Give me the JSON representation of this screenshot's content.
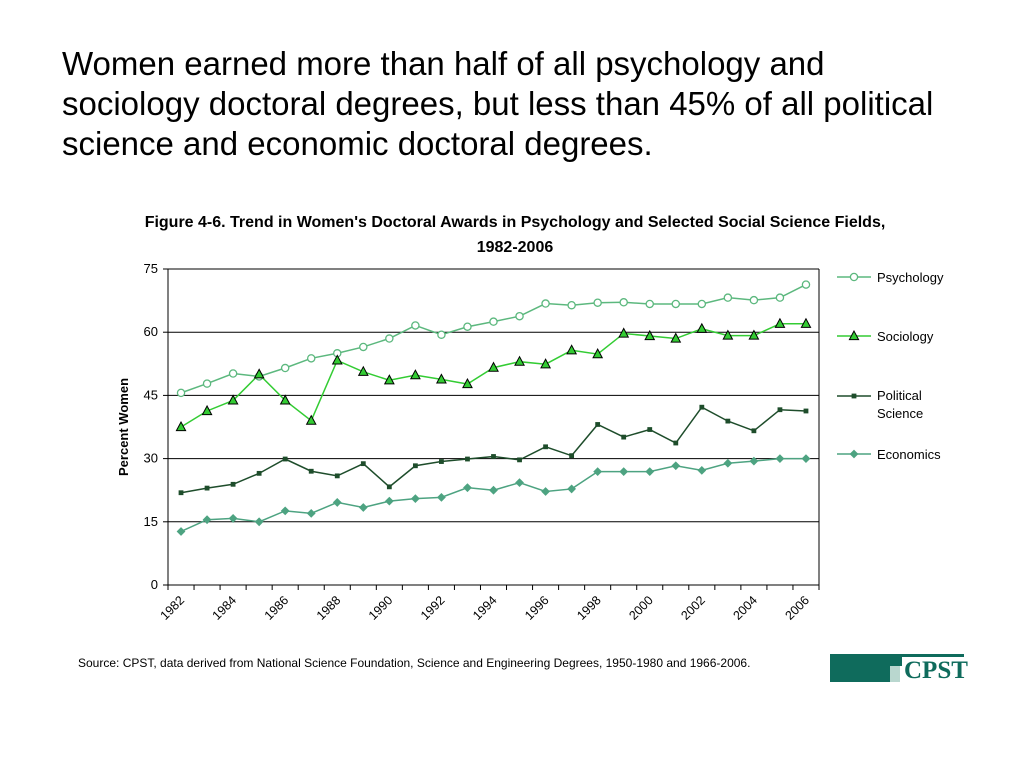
{
  "slide": {
    "headline": "Women earned more than half of all psychology and sociology doctoral degrees, but less than 45% of all political science and economic doctoral degrees.",
    "source": "Source: CPST, data derived from National Science Foundation, Science and Engineering Degrees, 1950-1980 and 1966-2006.",
    "logo_text": "CPST"
  },
  "chart_data": {
    "type": "line",
    "title": "Figure 4-6. Trend in Women's Doctoral Awards in Psychology and Selected Social Science Fields, 1982-2006",
    "xlabel": "",
    "ylabel": "Percent Women",
    "x": [
      1982,
      1983,
      1984,
      1985,
      1986,
      1987,
      1988,
      1989,
      1990,
      1991,
      1992,
      1993,
      1994,
      1995,
      1996,
      1997,
      1998,
      1999,
      2000,
      2001,
      2002,
      2003,
      2004,
      2005,
      2006
    ],
    "x_tick_labels": [
      "1982",
      "1984",
      "1986",
      "1988",
      "1990",
      "1992",
      "1994",
      "1996",
      "1998",
      "2000",
      "2002",
      "2004",
      "2006"
    ],
    "ylim": [
      0,
      75
    ],
    "y_ticks": [
      0,
      15,
      30,
      45,
      60,
      75
    ],
    "grid": "horizontal",
    "legend_position": "right",
    "series": [
      {
        "name": "Psychology",
        "color": "#5cb87e",
        "marker": "open-circle",
        "values": [
          45.6,
          47.8,
          50.2,
          49.5,
          51.5,
          53.8,
          55.0,
          56.5,
          58.5,
          61.6,
          59.4,
          61.3,
          62.5,
          63.8,
          66.8,
          66.4,
          67.0,
          67.1,
          66.7,
          66.7,
          66.7,
          68.2,
          67.6,
          68.2,
          71.3
        ]
      },
      {
        "name": "Sociology",
        "color": "#33cc33",
        "marker": "triangle",
        "values": [
          37.5,
          41.3,
          43.8,
          50.0,
          43.8,
          39.0,
          53.3,
          50.6,
          48.6,
          49.8,
          48.8,
          47.7,
          51.6,
          53.0,
          52.4,
          55.7,
          54.8,
          59.7,
          59.1,
          58.5,
          60.8,
          59.2,
          59.2,
          62.0,
          62.0
        ]
      },
      {
        "name": "Political Science",
        "color": "#1e4d2b",
        "marker": "filled-square",
        "values": [
          21.9,
          23.0,
          23.9,
          26.5,
          29.9,
          27.0,
          25.9,
          28.8,
          23.3,
          28.3,
          29.3,
          29.9,
          30.5,
          29.7,
          32.8,
          30.7,
          38.1,
          35.1,
          36.9,
          33.7,
          42.2,
          38.9,
          36.6,
          41.6,
          41.3
        ]
      },
      {
        "name": "Economics",
        "color": "#4da381",
        "marker": "diamond",
        "values": [
          12.7,
          15.5,
          15.8,
          15.0,
          17.6,
          17.0,
          19.6,
          18.4,
          19.9,
          20.5,
          20.8,
          23.1,
          22.5,
          24.3,
          22.2,
          22.8,
          26.9,
          26.9,
          26.9,
          28.3,
          27.2,
          28.9,
          29.4,
          30.0,
          30.0
        ]
      }
    ]
  }
}
